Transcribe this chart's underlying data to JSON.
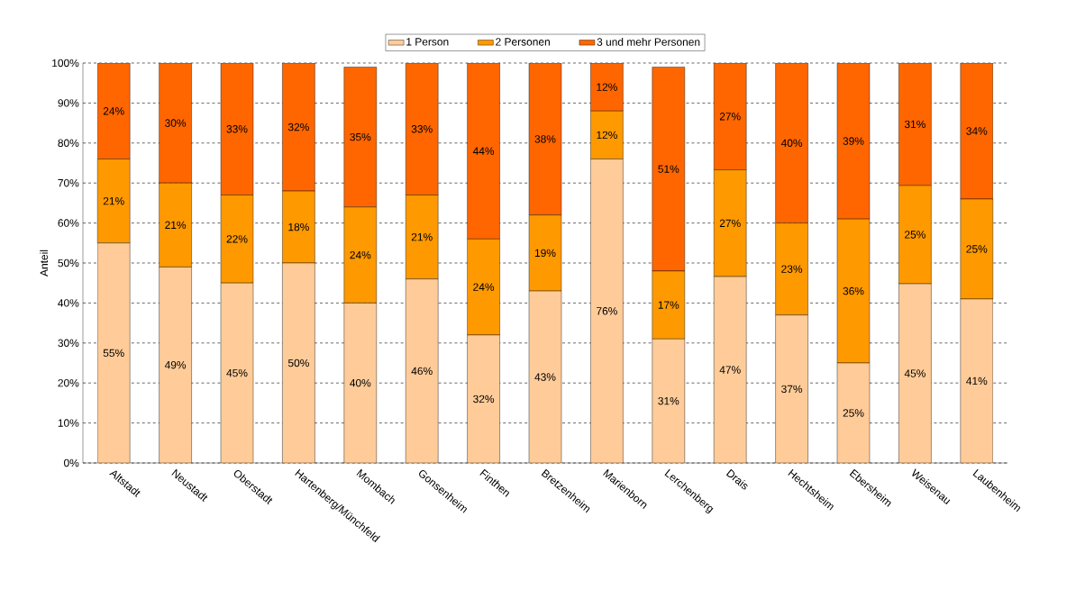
{
  "chart_data": {
    "type": "bar",
    "stacked": true,
    "ylabel": "Anteil",
    "categories": [
      "Altstadt",
      "Neustadt",
      "Oberstadt",
      "Hartenberg/Münchfeld",
      "Mombach",
      "Gonsenheim",
      "Finthen",
      "Bretzenheim",
      "Marienborn",
      "Lerchenberg",
      "Drais",
      "Hechtsheim",
      "Ebersheim",
      "Weisenau",
      "Laubenheim"
    ],
    "series": [
      {
        "name": "1 Person",
        "color": "#ffcc99",
        "values": [
          55,
          49,
          45,
          50,
          40,
          46,
          32,
          43,
          76,
          31,
          46.6,
          37,
          25,
          44.8,
          41
        ],
        "value_labels": [
          "55%",
          "49%",
          "45%",
          "50%",
          "40%",
          "46%",
          "32%",
          "43%",
          "76%",
          "31%",
          "47%",
          "37%",
          "25%",
          "45%",
          "41%"
        ]
      },
      {
        "name": "2 Personen",
        "color": "#ff9900",
        "values": [
          21,
          21,
          22,
          18,
          24,
          21,
          24,
          19,
          12,
          17,
          26.7,
          23,
          36,
          24.6,
          25
        ],
        "value_labels": [
          "21%",
          "21%",
          "22%",
          "18%",
          "24%",
          "21%",
          "24%",
          "19%",
          "12%",
          "17%",
          "27%",
          "23%",
          "36%",
          "25%",
          "25%"
        ]
      },
      {
        "name": "3 und mehr Personen",
        "color": "#ff6600",
        "values": [
          24,
          30,
          33,
          32,
          35,
          33,
          44,
          38,
          12,
          51,
          26.7,
          40,
          39,
          30.6,
          34
        ],
        "value_labels": [
          "24%",
          "30%",
          "33%",
          "32%",
          "35%",
          "33%",
          "44%",
          "38%",
          "12%",
          "51%",
          "27%",
          "40%",
          "39%",
          "31%",
          "34%"
        ]
      }
    ],
    "ylim": [
      0,
      100
    ],
    "yticks": [
      {
        "value": 0,
        "label": "0%"
      },
      {
        "value": 10,
        "label": "10%"
      },
      {
        "value": 20,
        "label": "20%"
      },
      {
        "value": 30,
        "label": "30%"
      },
      {
        "value": 40,
        "label": "40%"
      },
      {
        "value": 50,
        "label": "50%"
      },
      {
        "value": 60,
        "label": "60%"
      },
      {
        "value": 70,
        "label": "70%"
      },
      {
        "value": 80,
        "label": "80%"
      },
      {
        "value": 90,
        "label": "90%"
      },
      {
        "value": 100,
        "label": "100%"
      }
    ],
    "grid": "y",
    "legend": "top"
  }
}
